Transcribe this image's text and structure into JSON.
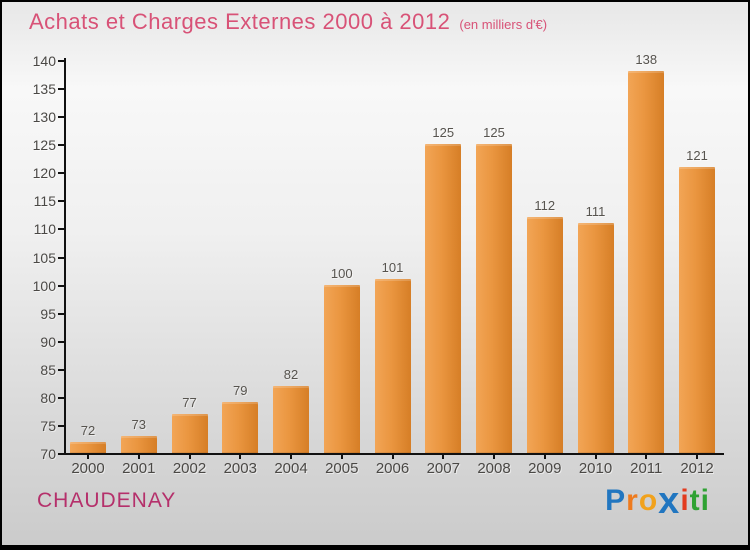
{
  "header": {
    "title": "Achats et Charges Externes 2000 à 2012",
    "subtitle": "(en milliers d'€)"
  },
  "chart_data": {
    "type": "bar",
    "title": "Achats et Charges Externes 2000 à 2012",
    "subtitle": "(en milliers d'€)",
    "categories": [
      "2000",
      "2001",
      "2002",
      "2003",
      "2004",
      "2005",
      "2006",
      "2007",
      "2008",
      "2009",
      "2010",
      "2011",
      "2012"
    ],
    "values": [
      72,
      73,
      77,
      79,
      82,
      100,
      101,
      125,
      125,
      112,
      111,
      138,
      121
    ],
    "xlabel": "",
    "ylabel": "",
    "ylim": [
      70,
      140
    ],
    "ytick_step": 5,
    "grid": false,
    "legend": false,
    "bar_color_light": "#f2a556",
    "bar_color_dark": "#d67e26",
    "value_label_color": "#57544f",
    "tick_label_color": "#4a4845"
  },
  "footer": {
    "commune": "CHAUDENAY",
    "logo_letters": [
      {
        "ch": "P",
        "color": "#2176c0",
        "big": false
      },
      {
        "ch": "r",
        "color": "#ee7b1e",
        "big": false
      },
      {
        "ch": "o",
        "color": "#f1a21c",
        "big": false
      },
      {
        "ch": "x",
        "color": "#2176c0",
        "big": true
      },
      {
        "ch": "i",
        "color": "#e33b1e",
        "big": false
      },
      {
        "ch": "t",
        "color": "#2fa233",
        "big": false
      },
      {
        "ch": "i",
        "color": "#2fa233",
        "big": false
      }
    ]
  },
  "colors": {
    "title": "#d85277",
    "commune": "#b5306b",
    "axis": "#111111",
    "background_top": "#f8f8f8",
    "background_bottom": "#cbcbcb"
  }
}
